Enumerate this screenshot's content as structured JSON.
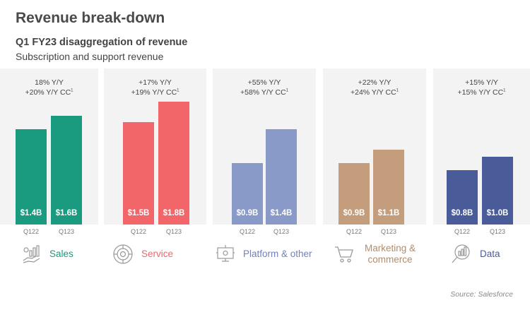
{
  "title": "Revenue break-down",
  "subtitle": "Q1 FY23 disaggregation of revenue",
  "subtitle2": "Subscription and support revenue",
  "source": "Source:  Salesforce",
  "chart_data": {
    "type": "bar",
    "categories": [
      "Q122",
      "Q123"
    ],
    "unit": "$B",
    "panels": [
      {
        "name": "Sales",
        "growth1": "18% Y/Y",
        "growth2": "+20% Y/Y CC",
        "sup": "1",
        "values": [
          1.4,
          1.6
        ],
        "value_labels": [
          "$1.4B",
          "$1.6B"
        ],
        "color": "#1a9a7e",
        "icon": "sales-hand-chart-icon"
      },
      {
        "name": "Service",
        "growth1": "+17% Y/Y",
        "growth2": "+19% Y/Y CC",
        "sup": "1",
        "values": [
          1.5,
          1.8
        ],
        "value_labels": [
          "$1.5B",
          "$1.8B"
        ],
        "color": "#f2666a",
        "icon": "service-gear-icon"
      },
      {
        "name": "Platform & other",
        "growth1": "+55% Y/Y",
        "growth2": "+58% Y/Y CC",
        "sup": "1",
        "values": [
          0.9,
          1.4
        ],
        "value_labels": [
          "$0.9B",
          "$1.4B"
        ],
        "color": "#8a9ac8",
        "icon": "platform-computer-icon"
      },
      {
        "name1": "Marketing &",
        "name2": "commerce",
        "growth1": "+22% Y/Y",
        "growth2": "+24% Y/Y CC",
        "sup": "1",
        "values": [
          0.9,
          1.1
        ],
        "value_labels": [
          "$0.9B",
          "$1.1B"
        ],
        "color": "#c39d7c",
        "icon": "shopping-cart-icon"
      },
      {
        "name": "Data",
        "growth1": "+15% Y/Y",
        "growth2": "+15% Y/Y CC",
        "sup": "1",
        "values": [
          0.8,
          1.0
        ],
        "value_labels": [
          "$0.8B",
          "$1.0B"
        ],
        "color": "#4a5b99",
        "icon": "data-magnifier-chart-icon"
      }
    ]
  }
}
